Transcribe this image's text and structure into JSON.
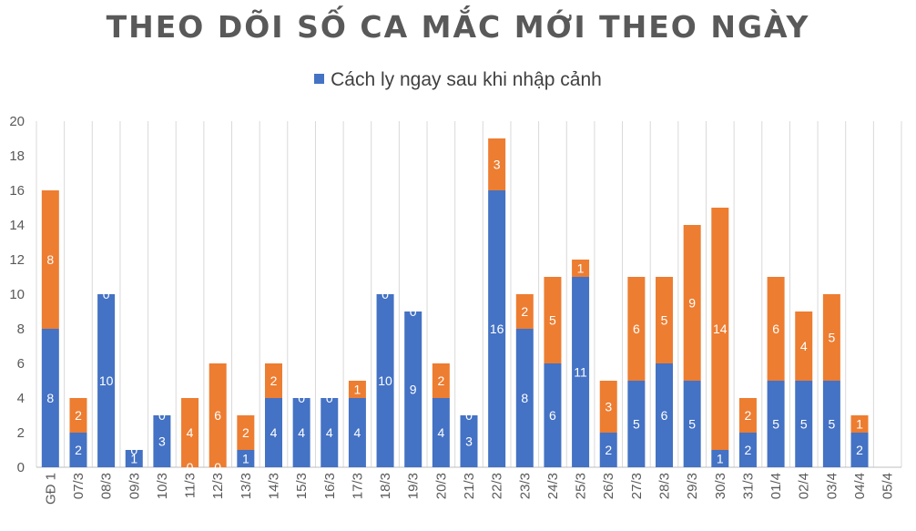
{
  "title": "THEO DÕI SỐ CA MẮC MỚI THEO NGÀY",
  "legend": {
    "label": "Cách ly ngay sau khi nhập cảnh"
  },
  "colors": {
    "series1": "#4472C4",
    "series2": "#ED7D31",
    "grid": "#D9D9D9",
    "axis": "#BFBFBF",
    "tick_text": "#595959",
    "label_text": "#FFFFFF"
  },
  "chart_data": {
    "type": "bar",
    "stacked": true,
    "categories": [
      "GĐ 1",
      "07/3",
      "08/3",
      "09/3",
      "10/3",
      "11/3",
      "12/3",
      "13/3",
      "14/3",
      "15/3",
      "16/3",
      "17/3",
      "18/3",
      "19/3",
      "20/3",
      "21/3",
      "22/3",
      "23/3",
      "24/3",
      "25/3",
      "26/3",
      "27/3",
      "28/3",
      "29/3",
      "30/3",
      "31/3",
      "01/4",
      "02/4",
      "03/4",
      "04/4",
      "05/4"
    ],
    "series": [
      {
        "name": "Cách ly ngay sau khi nhập cảnh",
        "color": "#4472C4",
        "values": [
          8,
          2,
          10,
          1,
          3,
          0,
          0,
          1,
          4,
          4,
          4,
          4,
          10,
          9,
          4,
          3,
          16,
          8,
          6,
          11,
          2,
          5,
          6,
          5,
          1,
          2,
          5,
          5,
          5,
          2,
          null
        ]
      },
      {
        "color": "#ED7D31",
        "values": [
          8,
          2,
          0,
          0,
          0,
          4,
          6,
          2,
          2,
          0,
          0,
          1,
          0,
          0,
          2,
          0,
          3,
          2,
          5,
          1,
          3,
          6,
          5,
          9,
          14,
          2,
          6,
          4,
          5,
          1,
          null
        ]
      }
    ],
    "ylim": [
      0,
      20
    ],
    "yticks": [
      0,
      2,
      4,
      6,
      8,
      10,
      12,
      14,
      16,
      18,
      20
    ],
    "grid": "vertical category separators",
    "legend_position": "top",
    "data_labels": true
  }
}
